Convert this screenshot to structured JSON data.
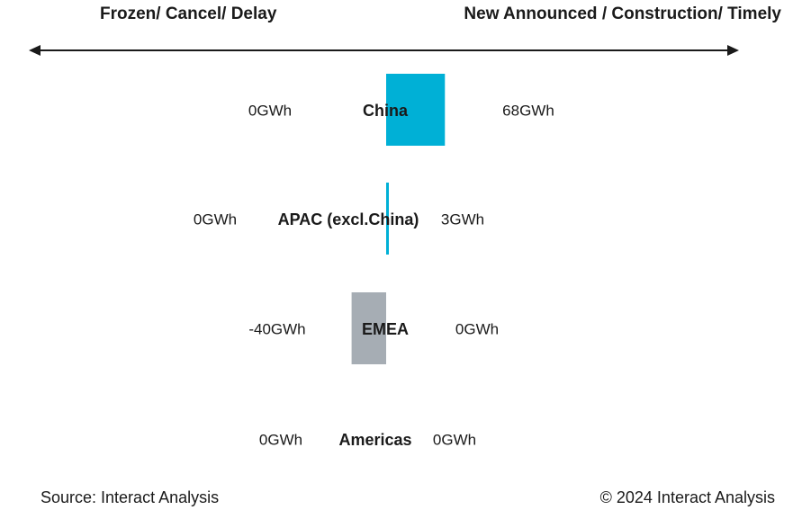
{
  "header": {
    "left_label": "Frozen/ Cancel/ Delay",
    "right_label": "New Announced / Construction/ Timely"
  },
  "footer": {
    "source": "Source: Interact Analysis",
    "copyright": "© 2024 Interact Analysis"
  },
  "colors": {
    "china": "#00b0d6",
    "apac": "#00b0d6",
    "emea": "#a6adb4",
    "arrow": "#1a1a1a"
  },
  "chart_data": {
    "type": "bar",
    "orientation": "horizontal",
    "unit": "GWh",
    "categories": [
      "China",
      "APAC (excl.China)",
      "EMEA",
      "Americas"
    ],
    "series": [
      {
        "values": [
          0,
          0,
          -40,
          0
        ],
        "value_labels": [
          "0GWh",
          "0GWh",
          "-40GWh",
          "0GWh"
        ]
      },
      {
        "values": [
          68,
          3,
          0,
          0
        ],
        "value_labels": [
          "68GWh",
          "3GWh",
          "0GWh",
          "0GWh"
        ]
      }
    ],
    "bar_colors": [
      "#00b0d6",
      "#00b0d6",
      "#a6adb4",
      "#a6adb4"
    ]
  }
}
